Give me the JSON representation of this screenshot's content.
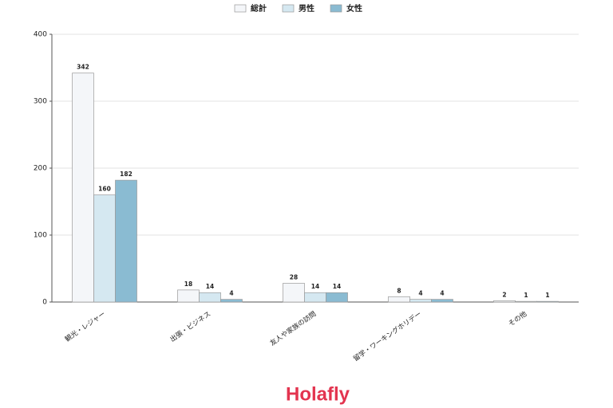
{
  "chart_data": {
    "type": "bar",
    "categories": [
      "観光・レジャー",
      "出張・ビジネス",
      "友人や家族の訪問",
      "留学・ワーキングホリデー",
      "その他"
    ],
    "series": [
      {
        "name": "総計",
        "color": "#f4f6f9",
        "values": [
          342,
          18,
          28,
          8,
          2
        ]
      },
      {
        "name": "男性",
        "color": "#d5e8f1",
        "values": [
          160,
          14,
          14,
          4,
          1
        ]
      },
      {
        "name": "女性",
        "color": "#8abbd2",
        "values": [
          182,
          4,
          14,
          4,
          1
        ]
      }
    ],
    "ylim": [
      0,
      400
    ],
    "yticks": [
      0,
      100,
      200,
      300,
      400
    ],
    "grid": true,
    "legend": "top"
  },
  "brand": "Holafly"
}
